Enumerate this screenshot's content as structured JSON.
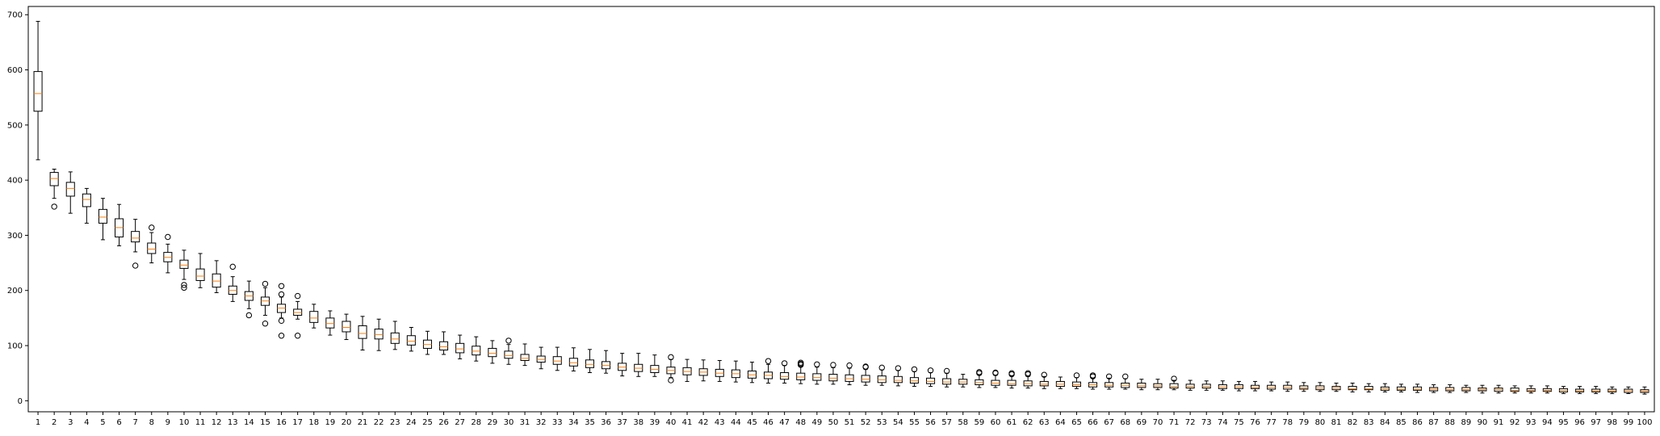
{
  "chart_data": {
    "type": "box",
    "title": "",
    "xlabel": "",
    "ylabel": "",
    "ylim": [
      -20,
      715
    ],
    "yticks": [
      0,
      100,
      200,
      300,
      400,
      500,
      600,
      700
    ],
    "grid": false,
    "legend": "none",
    "colors": {
      "box": "#000000",
      "median": "#ff7f0e",
      "outlier": "#000000"
    },
    "categories": [
      "1",
      "2",
      "3",
      "4",
      "5",
      "6",
      "7",
      "8",
      "9",
      "10",
      "11",
      "12",
      "13",
      "14",
      "15",
      "16",
      "17",
      "18",
      "19",
      "20",
      "21",
      "22",
      "23",
      "24",
      "25",
      "26",
      "27",
      "28",
      "29",
      "30",
      "31",
      "32",
      "33",
      "34",
      "35",
      "36",
      "37",
      "38",
      "39",
      "40",
      "41",
      "42",
      "43",
      "44",
      "45",
      "46",
      "47",
      "48",
      "49",
      "50",
      "51",
      "52",
      "53",
      "54",
      "55",
      "56",
      "57",
      "58",
      "59",
      "60",
      "61",
      "62",
      "63",
      "64",
      "65",
      "66",
      "67",
      "68",
      "69",
      "70",
      "71",
      "72",
      "73",
      "74",
      "75",
      "76",
      "77",
      "78",
      "79",
      "80",
      "81",
      "82",
      "83",
      "84",
      "85",
      "86",
      "87",
      "88",
      "89",
      "90",
      "91",
      "92",
      "93",
      "94",
      "95",
      "96",
      "97",
      "98",
      "99",
      "100"
    ],
    "boxes": [
      {
        "min": 437,
        "q1": 525,
        "median": 557,
        "q3": 597,
        "max": 688,
        "outliers": []
      },
      {
        "min": 367,
        "q1": 390,
        "median": 403,
        "q3": 414,
        "max": 420,
        "outliers": [
          352
        ]
      },
      {
        "min": 340,
        "q1": 371,
        "median": 385,
        "q3": 396,
        "max": 415,
        "outliers": []
      },
      {
        "min": 322,
        "q1": 352,
        "median": 365,
        "q3": 375,
        "max": 385,
        "outliers": []
      },
      {
        "min": 292,
        "q1": 322,
        "median": 333,
        "q3": 347,
        "max": 367,
        "outliers": []
      },
      {
        "min": 281,
        "q1": 297,
        "median": 314,
        "q3": 330,
        "max": 356,
        "outliers": []
      },
      {
        "min": 270,
        "q1": 288,
        "median": 295,
        "q3": 307,
        "max": 329,
        "outliers": [
          245
        ]
      },
      {
        "min": 250,
        "q1": 267,
        "median": 275,
        "q3": 286,
        "max": 305,
        "outliers": [
          314
        ]
      },
      {
        "min": 232,
        "q1": 252,
        "median": 260,
        "q3": 269,
        "max": 284,
        "outliers": [
          297
        ]
      },
      {
        "min": 220,
        "q1": 240,
        "median": 246,
        "q3": 255,
        "max": 273,
        "outliers": [
          210,
          205
        ]
      },
      {
        "min": 205,
        "q1": 218,
        "median": 226,
        "q3": 239,
        "max": 267,
        "outliers": []
      },
      {
        "min": 196,
        "q1": 206,
        "median": 217,
        "q3": 230,
        "max": 254,
        "outliers": []
      },
      {
        "min": 180,
        "q1": 193,
        "median": 200,
        "q3": 208,
        "max": 225,
        "outliers": [
          243
        ]
      },
      {
        "min": 167,
        "q1": 182,
        "median": 190,
        "q3": 198,
        "max": 217,
        "outliers": [
          155
        ]
      },
      {
        "min": 155,
        "q1": 173,
        "median": 181,
        "q3": 188,
        "max": 205,
        "outliers": [
          140,
          212
        ]
      },
      {
        "min": 150,
        "q1": 160,
        "median": 168,
        "q3": 175,
        "max": 188,
        "outliers": [
          118,
          145,
          208,
          193
        ]
      },
      {
        "min": 148,
        "q1": 155,
        "median": 160,
        "q3": 166,
        "max": 180,
        "outliers": [
          118,
          190
        ]
      },
      {
        "min": 132,
        "q1": 142,
        "median": 150,
        "q3": 162,
        "max": 175,
        "outliers": []
      },
      {
        "min": 119,
        "q1": 132,
        "median": 140,
        "q3": 150,
        "max": 163,
        "outliers": []
      },
      {
        "min": 111,
        "q1": 125,
        "median": 133,
        "q3": 144,
        "max": 157,
        "outliers": []
      },
      {
        "min": 92,
        "q1": 113,
        "median": 122,
        "q3": 136,
        "max": 153,
        "outliers": []
      },
      {
        "min": 91,
        "q1": 112,
        "median": 120,
        "q3": 130,
        "max": 148,
        "outliers": []
      },
      {
        "min": 93,
        "q1": 104,
        "median": 112,
        "q3": 123,
        "max": 144,
        "outliers": []
      },
      {
        "min": 90,
        "q1": 101,
        "median": 108,
        "q3": 118,
        "max": 133,
        "outliers": []
      },
      {
        "min": 84,
        "q1": 95,
        "median": 102,
        "q3": 110,
        "max": 126,
        "outliers": []
      },
      {
        "min": 84,
        "q1": 92,
        "median": 98,
        "q3": 107,
        "max": 125,
        "outliers": []
      },
      {
        "min": 76,
        "q1": 87,
        "median": 94,
        "q3": 104,
        "max": 119,
        "outliers": []
      },
      {
        "min": 72,
        "q1": 83,
        "median": 90,
        "q3": 99,
        "max": 116,
        "outliers": []
      },
      {
        "min": 68,
        "q1": 80,
        "median": 86,
        "q3": 95,
        "max": 109,
        "outliers": []
      },
      {
        "min": 66,
        "q1": 77,
        "median": 82,
        "q3": 90,
        "max": 102,
        "outliers": [
          109
        ]
      },
      {
        "min": 64,
        "q1": 73,
        "median": 77,
        "q3": 84,
        "max": 103,
        "outliers": []
      },
      {
        "min": 58,
        "q1": 70,
        "median": 75,
        "q3": 81,
        "max": 97,
        "outliers": []
      },
      {
        "min": 55,
        "q1": 66,
        "median": 72,
        "q3": 80,
        "max": 97,
        "outliers": []
      },
      {
        "min": 54,
        "q1": 63,
        "median": 69,
        "q3": 77,
        "max": 96,
        "outliers": []
      },
      {
        "min": 51,
        "q1": 60,
        "median": 66,
        "q3": 74,
        "max": 93,
        "outliers": []
      },
      {
        "min": 50,
        "q1": 58,
        "median": 64,
        "q3": 71,
        "max": 91,
        "outliers": []
      },
      {
        "min": 45,
        "q1": 55,
        "median": 61,
        "q3": 68,
        "max": 86,
        "outliers": []
      },
      {
        "min": 44,
        "q1": 53,
        "median": 59,
        "q3": 66,
        "max": 86,
        "outliers": []
      },
      {
        "min": 44,
        "q1": 51,
        "median": 57,
        "q3": 64,
        "max": 83,
        "outliers": []
      },
      {
        "min": 42,
        "q1": 49,
        "median": 55,
        "q3": 61,
        "max": 75,
        "outliers": [
          37,
          79
        ]
      },
      {
        "min": 35,
        "q1": 47,
        "median": 53,
        "q3": 60,
        "max": 75,
        "outliers": []
      },
      {
        "min": 36,
        "q1": 46,
        "median": 52,
        "q3": 58,
        "max": 74,
        "outliers": []
      },
      {
        "min": 35,
        "q1": 44,
        "median": 50,
        "q3": 57,
        "max": 73,
        "outliers": []
      },
      {
        "min": 34,
        "q1": 42,
        "median": 49,
        "q3": 56,
        "max": 72,
        "outliers": []
      },
      {
        "min": 33,
        "q1": 41,
        "median": 47,
        "q3": 54,
        "max": 70,
        "outliers": []
      },
      {
        "min": 32,
        "q1": 40,
        "median": 46,
        "q3": 52,
        "max": 66,
        "outliers": [
          72
        ]
      },
      {
        "min": 32,
        "q1": 39,
        "median": 44,
        "q3": 51,
        "max": 64,
        "outliers": [
          68
        ]
      },
      {
        "min": 31,
        "q1": 38,
        "median": 43,
        "q3": 50,
        "max": 62,
        "outliers": [
          65,
          67,
          69
        ]
      },
      {
        "min": 30,
        "q1": 37,
        "median": 42,
        "q3": 49,
        "max": 61,
        "outliers": [
          66
        ]
      },
      {
        "min": 30,
        "q1": 36,
        "median": 41,
        "q3": 48,
        "max": 60,
        "outliers": [
          65
        ]
      },
      {
        "min": 29,
        "q1": 35,
        "median": 40,
        "q3": 47,
        "max": 59,
        "outliers": [
          64
        ]
      },
      {
        "min": 28,
        "q1": 34,
        "median": 39,
        "q3": 46,
        "max": 57,
        "outliers": [
          61,
          62
        ]
      },
      {
        "min": 28,
        "q1": 33,
        "median": 38,
        "q3": 45,
        "max": 56,
        "outliers": [
          60
        ]
      },
      {
        "min": 27,
        "q1": 33,
        "median": 37,
        "q3": 44,
        "max": 55,
        "outliers": [
          59
        ]
      },
      {
        "min": 26,
        "q1": 32,
        "median": 36,
        "q3": 42,
        "max": 53,
        "outliers": [
          57
        ]
      },
      {
        "min": 26,
        "q1": 31,
        "median": 35,
        "q3": 41,
        "max": 51,
        "outliers": [
          55
        ]
      },
      {
        "min": 25,
        "q1": 30,
        "median": 34,
        "q3": 40,
        "max": 50,
        "outliers": [
          54
        ]
      },
      {
        "min": 25,
        "q1": 30,
        "median": 34,
        "q3": 39,
        "max": 48,
        "outliers": []
      },
      {
        "min": 24,
        "q1": 29,
        "median": 33,
        "q3": 38,
        "max": 47,
        "outliers": [
          50,
          52
        ]
      },
      {
        "min": 24,
        "q1": 28,
        "median": 32,
        "q3": 37,
        "max": 46,
        "outliers": [
          50,
          51
        ]
      },
      {
        "min": 23,
        "q1": 28,
        "median": 31,
        "q3": 37,
        "max": 45,
        "outliers": [
          48,
          50
        ]
      },
      {
        "min": 23,
        "q1": 27,
        "median": 31,
        "q3": 36,
        "max": 44,
        "outliers": [
          48,
          50
        ]
      },
      {
        "min": 22,
        "q1": 27,
        "median": 30,
        "q3": 35,
        "max": 44,
        "outliers": [
          47
        ]
      },
      {
        "min": 22,
        "q1": 26,
        "median": 30,
        "q3": 35,
        "max": 43,
        "outliers": []
      },
      {
        "min": 22,
        "q1": 26,
        "median": 29,
        "q3": 34,
        "max": 42,
        "outliers": [
          46
        ]
      },
      {
        "min": 21,
        "q1": 25,
        "median": 29,
        "q3": 33,
        "max": 41,
        "outliers": [
          44,
          46
        ]
      },
      {
        "min": 21,
        "q1": 25,
        "median": 28,
        "q3": 33,
        "max": 41,
        "outliers": [
          44
        ]
      },
      {
        "min": 21,
        "q1": 24,
        "median": 28,
        "q3": 32,
        "max": 40,
        "outliers": [
          44
        ]
      },
      {
        "min": 20,
        "q1": 24,
        "median": 27,
        "q3": 32,
        "max": 39,
        "outliers": []
      },
      {
        "min": 20,
        "q1": 24,
        "median": 27,
        "q3": 31,
        "max": 39,
        "outliers": []
      },
      {
        "min": 20,
        "q1": 23,
        "median": 26,
        "q3": 31,
        "max": 37,
        "outliers": [
          40
        ]
      },
      {
        "min": 19,
        "q1": 23,
        "median": 26,
        "q3": 30,
        "max": 37,
        "outliers": []
      },
      {
        "min": 19,
        "q1": 23,
        "median": 26,
        "q3": 30,
        "max": 36,
        "outliers": []
      },
      {
        "min": 19,
        "q1": 22,
        "median": 25,
        "q3": 29,
        "max": 36,
        "outliers": []
      },
      {
        "min": 18,
        "q1": 22,
        "median": 25,
        "q3": 29,
        "max": 35,
        "outliers": []
      },
      {
        "min": 18,
        "q1": 22,
        "median": 24,
        "q3": 28,
        "max": 35,
        "outliers": []
      },
      {
        "min": 18,
        "q1": 21,
        "median": 24,
        "q3": 28,
        "max": 34,
        "outliers": []
      },
      {
        "min": 17,
        "q1": 21,
        "median": 24,
        "q3": 28,
        "max": 34,
        "outliers": []
      },
      {
        "min": 17,
        "q1": 21,
        "median": 23,
        "q3": 27,
        "max": 33,
        "outliers": []
      },
      {
        "min": 17,
        "q1": 20,
        "median": 23,
        "q3": 27,
        "max": 33,
        "outliers": []
      },
      {
        "min": 17,
        "q1": 20,
        "median": 23,
        "q3": 26,
        "max": 32,
        "outliers": []
      },
      {
        "min": 16,
        "q1": 20,
        "median": 22,
        "q3": 26,
        "max": 32,
        "outliers": []
      },
      {
        "min": 16,
        "q1": 20,
        "median": 22,
        "q3": 26,
        "max": 31,
        "outliers": []
      },
      {
        "min": 16,
        "q1": 19,
        "median": 22,
        "q3": 25,
        "max": 31,
        "outliers": []
      },
      {
        "min": 16,
        "q1": 19,
        "median": 21,
        "q3": 25,
        "max": 30,
        "outliers": []
      },
      {
        "min": 15,
        "q1": 19,
        "median": 21,
        "q3": 25,
        "max": 30,
        "outliers": []
      },
      {
        "min": 15,
        "q1": 18,
        "median": 21,
        "q3": 24,
        "max": 29,
        "outliers": []
      },
      {
        "min": 15,
        "q1": 18,
        "median": 20,
        "q3": 24,
        "max": 29,
        "outliers": []
      },
      {
        "min": 15,
        "q1": 18,
        "median": 20,
        "q3": 24,
        "max": 28,
        "outliers": []
      },
      {
        "min": 14,
        "q1": 18,
        "median": 20,
        "q3": 23,
        "max": 28,
        "outliers": []
      },
      {
        "min": 14,
        "q1": 17,
        "median": 20,
        "q3": 23,
        "max": 28,
        "outliers": []
      },
      {
        "min": 14,
        "q1": 17,
        "median": 19,
        "q3": 23,
        "max": 27,
        "outliers": []
      },
      {
        "min": 14,
        "q1": 17,
        "median": 19,
        "q3": 22,
        "max": 27,
        "outliers": []
      },
      {
        "min": 14,
        "q1": 17,
        "median": 19,
        "q3": 22,
        "max": 27,
        "outliers": []
      },
      {
        "min": 13,
        "q1": 16,
        "median": 19,
        "q3": 22,
        "max": 26,
        "outliers": []
      },
      {
        "min": 13,
        "q1": 16,
        "median": 18,
        "q3": 21,
        "max": 26,
        "outliers": []
      },
      {
        "min": 13,
        "q1": 16,
        "median": 18,
        "q3": 21,
        "max": 26,
        "outliers": []
      },
      {
        "min": 13,
        "q1": 16,
        "median": 18,
        "q3": 21,
        "max": 25,
        "outliers": []
      },
      {
        "min": 13,
        "q1": 15,
        "median": 18,
        "q3": 21,
        "max": 25,
        "outliers": []
      },
      {
        "min": 12,
        "q1": 15,
        "median": 17,
        "q3": 20,
        "max": 25,
        "outliers": []
      }
    ]
  }
}
